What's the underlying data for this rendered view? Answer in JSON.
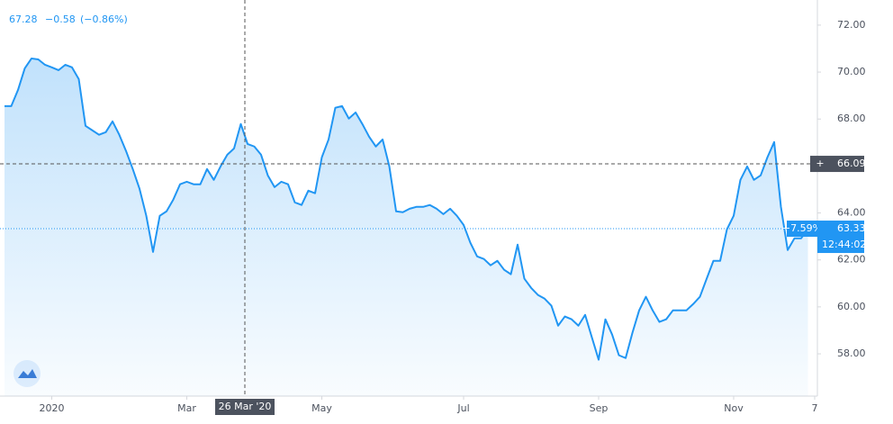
{
  "chart_data": {
    "type": "area",
    "header": {
      "price": "67.28",
      "change": "−0.58",
      "change_pct": "(−0.86%)"
    },
    "categories": [
      null,
      null,
      null,
      null,
      null,
      null,
      null,
      "2020",
      null,
      null,
      null,
      null,
      null,
      null,
      null,
      null,
      null,
      null,
      null,
      null,
      null,
      null,
      null,
      null,
      null,
      null,
      null,
      "Mar",
      null,
      null,
      null,
      null,
      null,
      null,
      null,
      null,
      null,
      null,
      null,
      null,
      null,
      null,
      null,
      null,
      null,
      null,
      null,
      "May",
      null,
      null,
      null,
      null,
      null,
      null,
      null,
      null,
      null,
      null,
      null,
      null,
      null,
      null,
      null,
      null,
      null,
      null,
      null,
      null,
      "Jul",
      null,
      null,
      null,
      null,
      null,
      null,
      null,
      null,
      null,
      null,
      null,
      null,
      null,
      null,
      null,
      null,
      null,
      null,
      null,
      "Sep",
      null,
      null,
      null,
      null,
      null,
      null,
      null,
      null,
      null,
      null,
      null,
      null,
      null,
      null,
      null,
      null,
      null,
      null,
      null,
      "Nov",
      null,
      null,
      null,
      null,
      null,
      null,
      null,
      null,
      null,
      null,
      null,
      "7"
    ],
    "values": [
      68.55,
      68.55,
      69.24,
      70.16,
      70.58,
      70.54,
      70.31,
      70.2,
      70.08,
      70.31,
      70.2,
      69.7,
      67.71,
      67.52,
      67.33,
      67.44,
      67.9,
      67.33,
      66.64,
      65.87,
      65.03,
      63.88,
      62.34,
      63.88,
      64.07,
      64.57,
      65.22,
      65.33,
      65.22,
      65.22,
      65.87,
      65.41,
      65.98,
      66.48,
      66.75,
      67.79,
      66.94,
      66.83,
      66.48,
      65.6,
      65.1,
      65.33,
      65.22,
      64.45,
      64.34,
      64.95,
      64.84,
      66.37,
      67.13,
      68.48,
      68.55,
      68.02,
      68.28,
      67.79,
      67.25,
      66.83,
      67.13,
      65.98,
      64.07,
      64.03,
      64.18,
      64.26,
      64.26,
      64.34,
      64.18,
      63.95,
      64.18,
      63.88,
      63.49,
      62.73,
      62.15,
      62.04,
      61.77,
      61.96,
      61.58,
      61.39,
      62.65,
      61.2,
      60.81,
      60.51,
      60.35,
      60.05,
      59.2,
      59.59,
      59.47,
      59.2,
      59.66,
      58.7,
      57.75,
      59.47,
      58.82,
      57.94,
      57.82,
      58.89,
      59.85,
      60.43,
      59.85,
      59.36,
      59.47,
      59.85,
      59.85,
      59.85,
      60.12,
      60.43,
      61.2,
      61.96,
      61.96,
      63.3,
      63.88,
      65.41,
      65.98,
      65.41,
      65.6,
      66.37,
      67.02,
      64.26,
      62.42,
      62.92,
      62.92,
      63.33,
      null
    ],
    "color": "#2196f3",
    "ylim": [
      56.2,
      73.07
    ],
    "yticks": [
      {
        "value": 58,
        "label": "58.00"
      },
      {
        "value": 60,
        "label": "60.00"
      },
      {
        "value": 62,
        "label": "62.00"
      },
      {
        "value": 64,
        "label": "64.00"
      },
      {
        "value": 68,
        "label": "68.00"
      },
      {
        "value": 70,
        "label": "70.00"
      },
      {
        "value": 72,
        "label": "72.00"
      }
    ],
    "crosshair": {
      "value": 66.09,
      "x_label": "26 Mar '20"
    },
    "last_label": {
      "price": "63.33",
      "change": "−7.59%",
      "time": "12:44:02"
    }
  }
}
